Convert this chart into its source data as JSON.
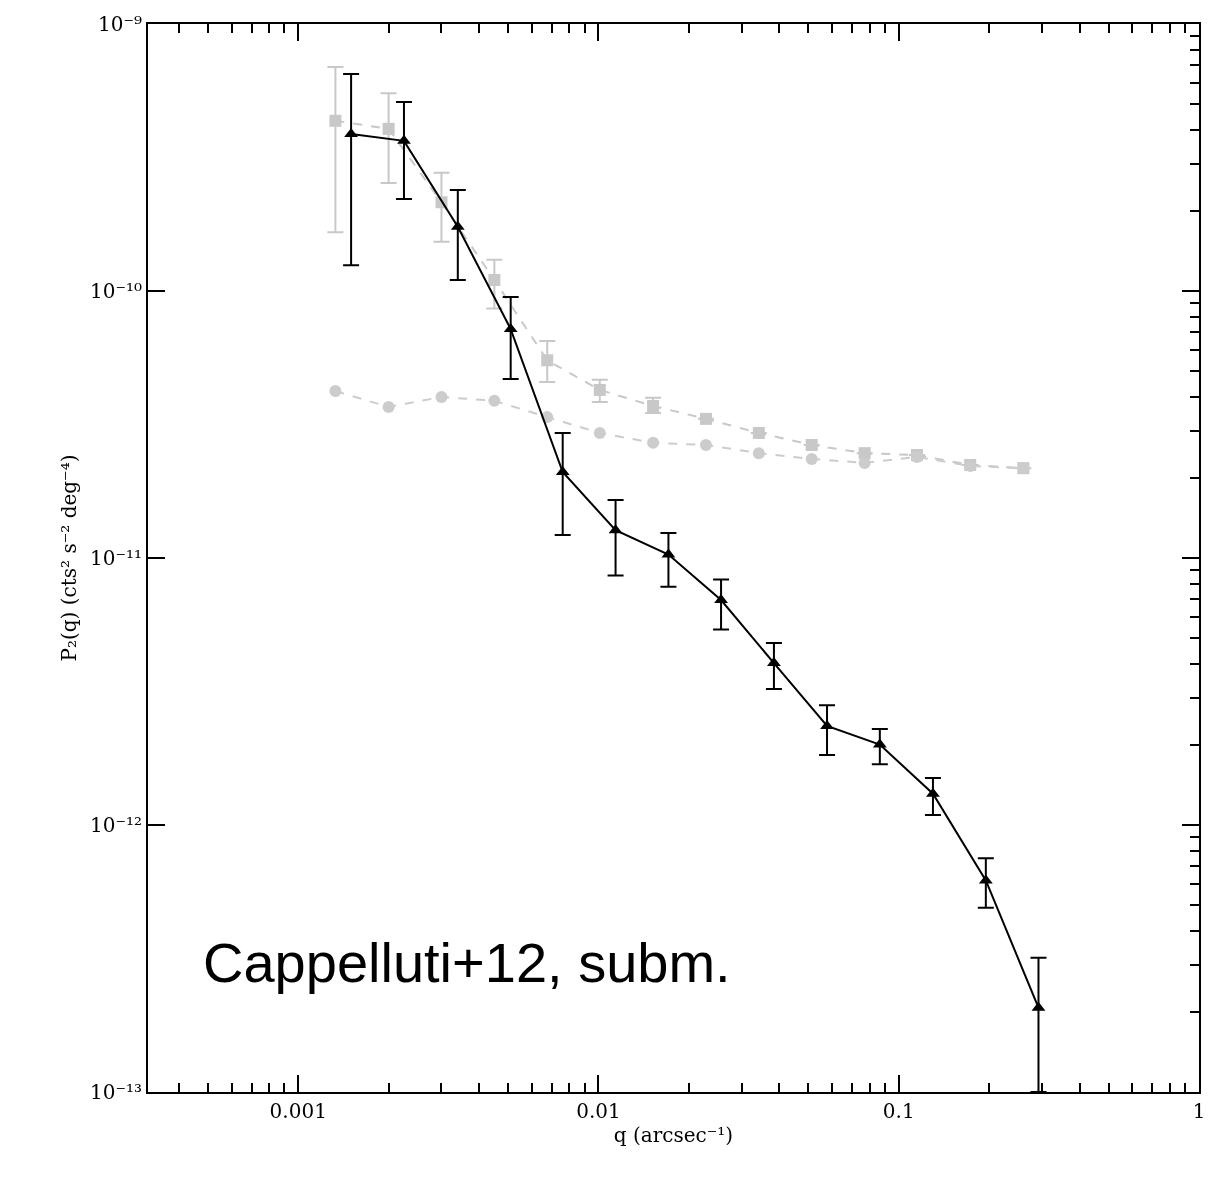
{
  "chart_data": {
    "type": "line",
    "xlabel": "q (arcsec⁻¹)",
    "ylabel": "P₂(q) (cts² s⁻² deg⁻⁴)",
    "log": "xy",
    "xlim": [
      0.000316,
      1
    ],
    "ylim": [
      1e-13,
      1e-09
    ],
    "xticks": [
      0.001,
      0.01,
      0.1,
      1
    ],
    "yticks": [
      {
        "value": 1e-13,
        "label": "10⁻¹³"
      },
      {
        "value": 1e-12,
        "label": "10⁻¹²"
      },
      {
        "value": 1e-11,
        "label": "10⁻¹¹"
      },
      {
        "value": 1e-10,
        "label": "10⁻¹⁰"
      },
      {
        "value": 1e-09,
        "label": "10⁻⁹"
      }
    ],
    "annotations": [
      "Cappelluti+12, subm."
    ],
    "series": [
      {
        "color": "#c8c8c8",
        "marker": "square",
        "line_style": "dashed",
        "x": [
          0.00133,
          0.002,
          0.003,
          0.0045,
          0.00675,
          0.0101,
          0.0152,
          0.0228,
          0.0342,
          0.0513,
          0.077,
          0.115,
          0.173,
          0.26
        ],
        "values": [
          4.34e-10,
          4.05e-10,
          2.15e-10,
          1.1e-10,
          5.5e-11,
          4.26e-11,
          3.71e-11,
          3.32e-11,
          2.94e-11,
          2.65e-11,
          2.47e-11,
          2.43e-11,
          2.23e-11,
          2.17e-11
        ],
        "errors": [
          [
            1.66e-10,
            6.9e-10
          ],
          [
            2.54e-10,
            5.5e-10
          ],
          [
            1.53e-10,
            2.77e-10
          ],
          [
            8.6e-11,
            1.31e-10
          ],
          [
            4.56e-11,
            6.5e-11
          ],
          [
            3.84e-11,
            4.65e-11
          ],
          [
            3.49e-11,
            3.98e-11
          ],
          null,
          null,
          null,
          null,
          null,
          null,
          null
        ]
      },
      {
        "color": "#cccccc",
        "marker": "circle",
        "line_style": "dashed",
        "x": [
          0.00133,
          0.002,
          0.003,
          0.0045,
          0.00675,
          0.0101,
          0.0152,
          0.0228,
          0.0342,
          0.0513,
          0.077,
          0.115,
          0.173,
          0.26
        ],
        "values": [
          4.22e-11,
          3.68e-11,
          4.01e-11,
          3.88e-11,
          3.37e-11,
          2.94e-11,
          2.7e-11,
          2.65e-11,
          2.47e-11,
          2.35e-11,
          2.27e-11,
          2.39e-11,
          2.21e-11,
          2.17e-11
        ]
      },
      {
        "color": "#000000",
        "marker": "triangle",
        "line_style": "solid",
        "x": [
          0.0015,
          0.00225,
          0.0034,
          0.0051,
          0.0076,
          0.0114,
          0.0171,
          0.0256,
          0.0384,
          0.0577,
          0.0865,
          0.13,
          0.195,
          0.292
        ],
        "values": [
          3.87e-10,
          3.65e-10,
          1.74e-10,
          7.2e-11,
          2.1e-11,
          1.27e-11,
          1.03e-11,
          6.96e-12,
          4.04e-12,
          2.35e-12,
          2e-12,
          1.31e-12,
          6.2e-13,
          2.07e-13
        ],
        "errors": [
          [
            1.25e-10,
            6.5e-10
          ],
          [
            2.21e-10,
            5.1e-10
          ],
          [
            1.1e-10,
            2.39e-10
          ],
          [
            4.68e-11,
            9.5e-11
          ],
          [
            1.22e-11,
            2.94e-11
          ],
          [
            8.6e-12,
            1.65e-11
          ],
          [
            7.8e-12,
            1.24e-11
          ],
          [
            5.4e-12,
            8.3e-12
          ],
          [
            3.23e-12,
            4.8e-12
          ],
          [
            1.83e-12,
            2.81e-12
          ],
          [
            1.69e-12,
            2.29e-12
          ],
          [
            1.09e-12,
            1.5e-12
          ],
          [
            4.9e-13,
            7.5e-13
          ],
          [
            1e-13,
            3.18e-13
          ]
        ]
      }
    ]
  }
}
